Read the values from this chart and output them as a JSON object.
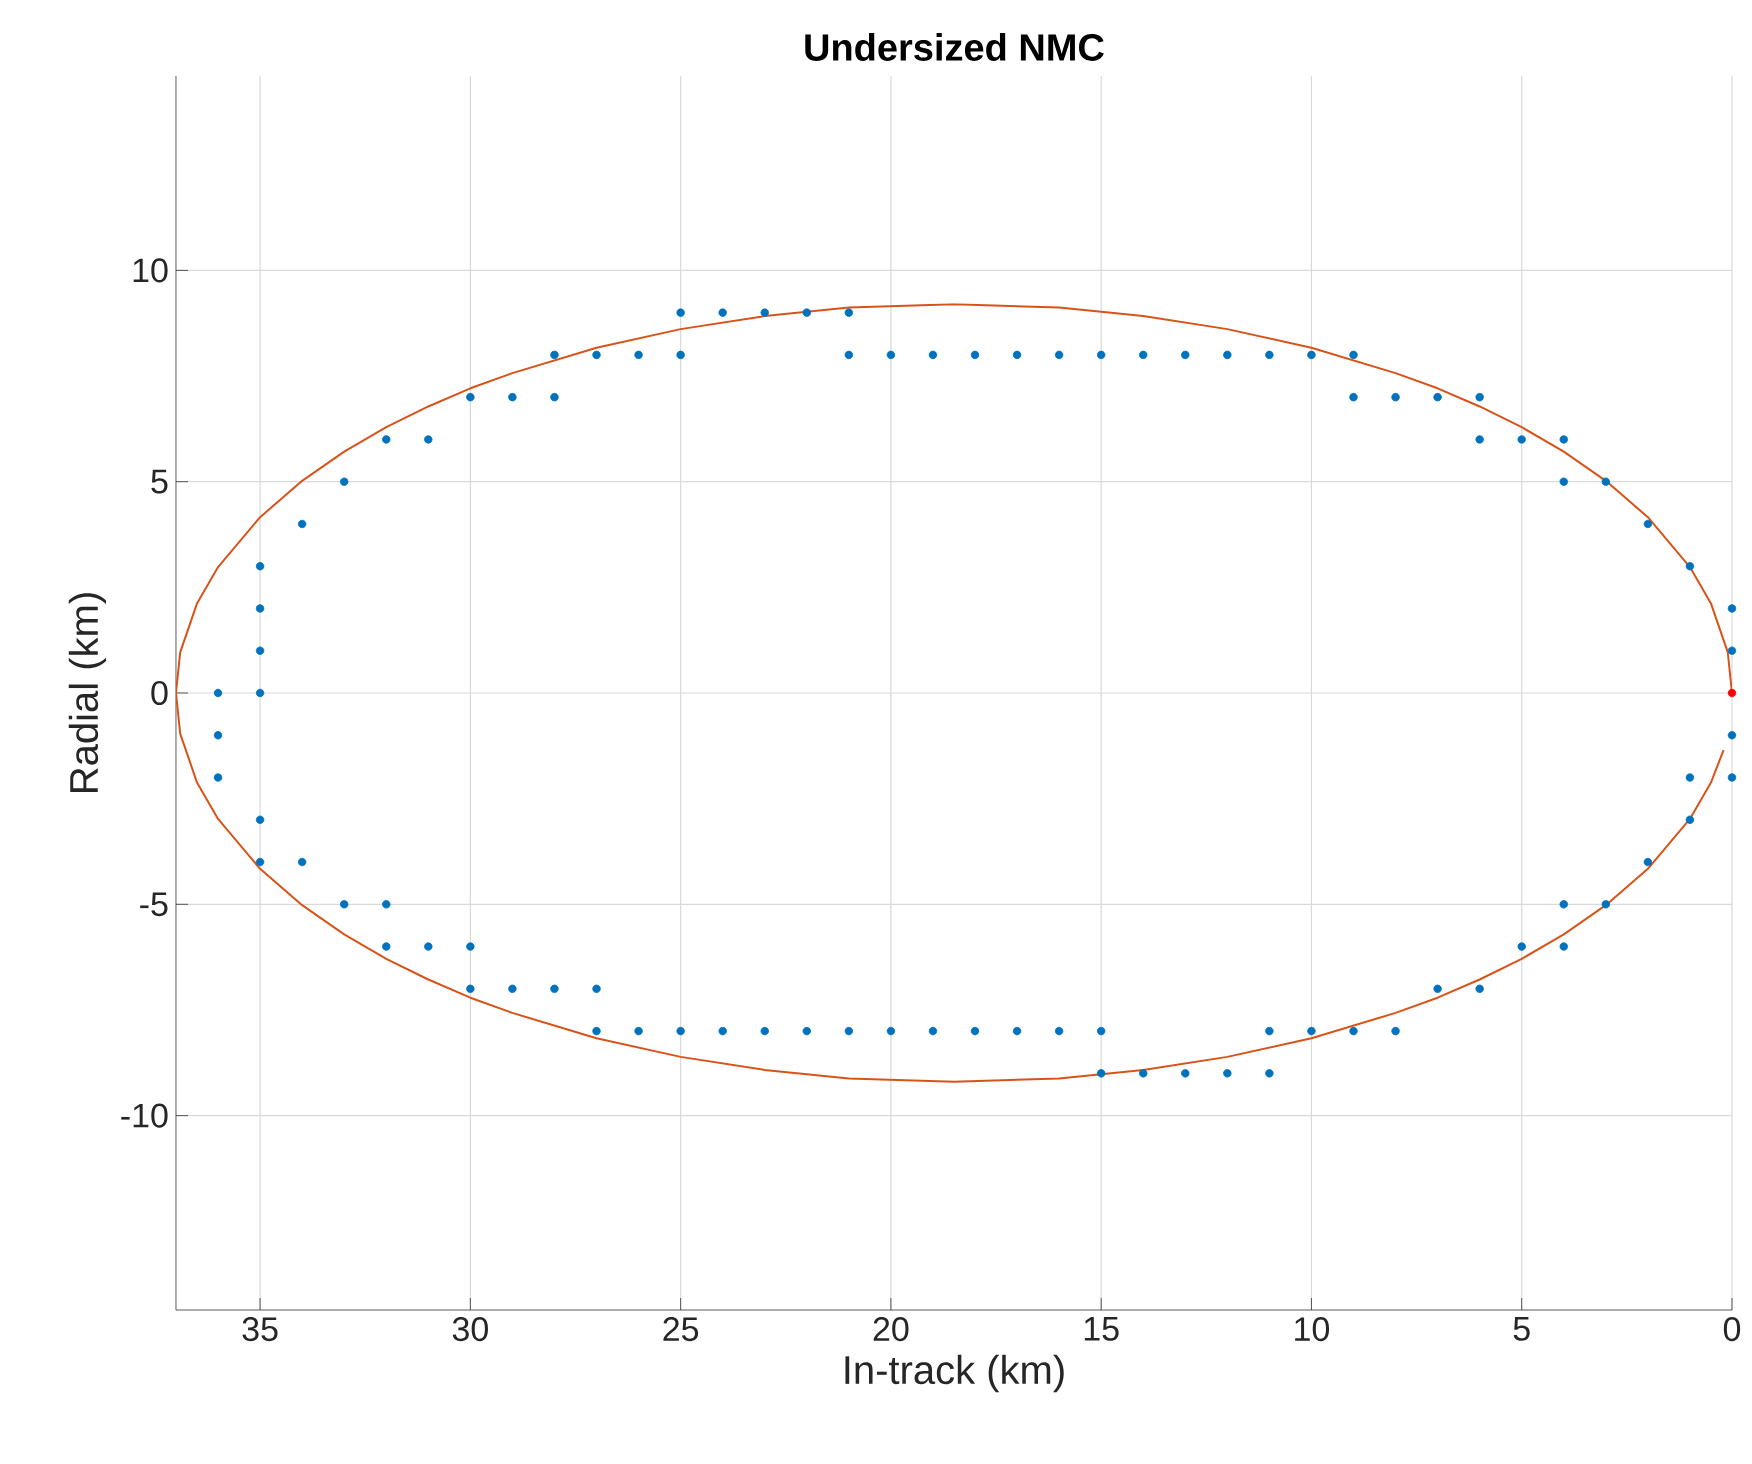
{
  "chart_data": {
    "type": "scatter",
    "title": "Undersized NMC",
    "xlabel": "In-track (km)",
    "ylabel": "Radial (km)",
    "xlim": [
      37,
      0
    ],
    "ylim": [
      -14.6,
      14.6
    ],
    "xticks": [
      35,
      30,
      25,
      20,
      15,
      10,
      5,
      0
    ],
    "yticks": [
      -10,
      -5,
      0,
      5,
      10
    ],
    "grid": true,
    "marker": "circle",
    "series": [
      {
        "color": "#0072bd",
        "x": [
          25,
          24,
          23,
          22,
          21,
          28,
          27,
          26,
          25,
          21,
          20,
          19,
          18,
          17,
          16,
          15,
          14,
          13,
          12,
          11,
          10,
          9,
          30,
          29,
          28,
          9,
          8,
          7,
          6,
          32,
          31,
          6,
          5,
          4,
          33,
          4,
          3,
          34,
          2,
          35,
          1,
          35,
          0,
          35,
          0,
          36,
          35,
          36,
          0,
          36,
          1,
          0,
          35,
          1,
          35,
          34,
          2,
          33,
          32,
          4,
          3,
          32,
          31,
          30,
          5,
          4,
          30,
          29,
          28,
          27,
          7,
          6,
          27,
          26,
          25,
          24,
          23,
          22,
          21,
          20,
          19,
          18,
          17,
          16,
          15,
          11,
          10,
          9,
          8,
          15,
          14,
          13,
          12,
          11
        ],
        "values": [
          9,
          9,
          9,
          9,
          9,
          8,
          8,
          8,
          8,
          8,
          8,
          8,
          8,
          8,
          8,
          8,
          8,
          8,
          8,
          8,
          8,
          8,
          7,
          7,
          7,
          7,
          7,
          7,
          7,
          6,
          6,
          6,
          6,
          6,
          5,
          5,
          5,
          4,
          4,
          3,
          3,
          2,
          2,
          1,
          1,
          0,
          0,
          -1,
          -1,
          -2,
          -2,
          -2,
          -3,
          -3,
          -4,
          -4,
          -4,
          -5,
          -5,
          -5,
          -5,
          -6,
          -6,
          -6,
          -6,
          -6,
          -7,
          -7,
          -7,
          -7,
          -7,
          -7,
          -8,
          -8,
          -8,
          -8,
          -8,
          -8,
          -8,
          -8,
          -8,
          -8,
          -8,
          -8,
          -8,
          -8,
          -8,
          -8,
          -8,
          -9,
          -9,
          -9,
          -9,
          -9
        ]
      },
      {
        "type": "line",
        "color": "#d95319",
        "marker": "none",
        "line_style": "solid",
        "x": [
          0,
          0.1,
          0.5,
          1,
          2,
          3,
          4,
          5,
          6,
          7,
          8,
          10,
          12,
          14,
          16,
          18.5,
          21,
          23,
          25,
          27,
          29,
          30,
          31,
          32,
          33,
          34,
          35,
          36,
          36.5,
          36.9,
          37,
          36.9,
          36.5,
          36,
          35,
          34,
          33,
          32,
          31,
          30,
          29,
          27,
          25,
          23,
          21,
          18.5,
          16,
          14,
          12,
          10,
          8,
          7,
          6,
          5,
          4,
          3,
          2,
          1,
          0.5,
          0.2
        ],
        "values": [
          0,
          0.96,
          2.12,
          2.98,
          4.16,
          5.02,
          5.71,
          6.29,
          6.78,
          7.21,
          7.57,
          8.17,
          8.61,
          8.92,
          9.12,
          9.2,
          9.12,
          8.92,
          8.61,
          8.17,
          7.57,
          7.21,
          6.78,
          6.29,
          5.71,
          5.02,
          4.16,
          2.98,
          2.12,
          0.96,
          0,
          -0.96,
          -2.12,
          -2.98,
          -4.16,
          -5.02,
          -5.71,
          -6.29,
          -6.78,
          -7.21,
          -7.57,
          -8.17,
          -8.61,
          -8.92,
          -9.12,
          -9.2,
          -9.12,
          -8.92,
          -8.61,
          -8.17,
          -7.57,
          -7.21,
          -6.78,
          -6.29,
          -5.71,
          -5.02,
          -4.16,
          -2.98,
          -2.12,
          -1.35
        ]
      },
      {
        "color": "#ff0000",
        "x": [
          0
        ],
        "values": [
          0
        ]
      }
    ]
  }
}
